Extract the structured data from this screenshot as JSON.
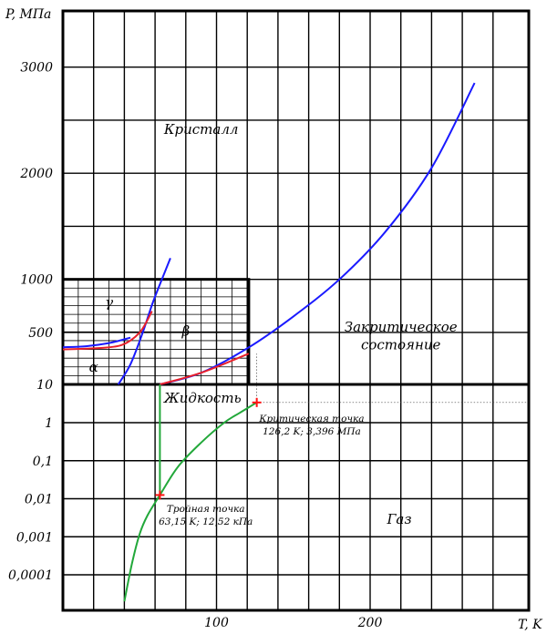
{
  "chart_data": {
    "type": "line",
    "title": "",
    "xlabel": "T, K",
    "ylabel": "P, МПа",
    "x_ticks": [
      {
        "value": 100,
        "label": "100"
      },
      {
        "value": 200,
        "label": "200"
      }
    ],
    "y_ticks": [
      "0,0001",
      "0,001",
      "0,01",
      "0,1",
      "1",
      "10",
      "500",
      "1000",
      "2000",
      "3000"
    ],
    "y_axis_note": "piecewise scale: logarithmic from 0,0001 to 10 MPa, linear from 10 to 3000 MPa",
    "xlim": [
      0,
      245
    ],
    "grid": true,
    "regions": [
      {
        "key": "crystal",
        "label": "Кристалл"
      },
      {
        "key": "supercritical_line1",
        "label": "Закритическое"
      },
      {
        "key": "supercritical_line2",
        "label": "состояние"
      },
      {
        "key": "liquid",
        "label": "Жидкость"
      },
      {
        "key": "gas",
        "label": "Газ"
      },
      {
        "key": "alpha",
        "label": "α"
      },
      {
        "key": "beta",
        "label": "β"
      },
      {
        "key": "gamma",
        "label": "γ"
      }
    ],
    "points": [
      {
        "name": "Критическая точка",
        "line1": "Критическая точка",
        "line2": "126,2 K; 3,396 МПа",
        "T": 126.2,
        "P": 3.396
      },
      {
        "name": "Тройная точка",
        "line1": "Тройная точка",
        "line2": "63,15 K; 12,52 кПа",
        "T": 63.15,
        "P": 0.01252
      }
    ],
    "series": [
      {
        "color": "#1a1aff",
        "points": [
          [
            63.15,
            10
          ],
          [
            90,
            120
          ],
          [
            120,
            350
          ],
          [
            150,
            650
          ],
          [
            180,
            1000
          ],
          [
            210,
            1450
          ],
          [
            240,
            2050
          ],
          [
            268,
            2850
          ]
        ]
      },
      {
        "color": "#1a1aff",
        "points": [
          [
            36,
            10
          ],
          [
            44,
            200
          ],
          [
            52,
            500
          ],
          [
            59,
            800
          ],
          [
            70,
            1200
          ]
        ]
      },
      {
        "color": "#1a1aff",
        "points": [
          [
            0,
            360
          ],
          [
            15,
            370
          ],
          [
            30,
            400
          ],
          [
            44,
            450
          ]
        ]
      },
      {
        "color": "#e8202a",
        "points": [
          [
            0,
            340
          ],
          [
            20,
            350
          ],
          [
            38,
            380
          ],
          [
            50,
            500
          ],
          [
            58,
            700
          ]
        ]
      },
      {
        "color": "#e8202a",
        "points": [
          [
            63.15,
            10
          ],
          [
            90,
            120
          ],
          [
            121,
            300
          ]
        ]
      },
      {
        "color": "#22a83a",
        "points": [
          [
            40,
            2e-05
          ],
          [
            45,
            0.0002
          ],
          [
            50,
            0.0012
          ],
          [
            55,
            0.0036
          ],
          [
            63.15,
            0.01252
          ],
          [
            75,
            0.07
          ],
          [
            90,
            0.3
          ],
          [
            105,
            1.0
          ],
          [
            115,
            1.8
          ],
          [
            126.2,
            3.396
          ]
        ]
      },
      {
        "color": "#22a83a",
        "points": [
          [
            63.15,
            0.01252
          ],
          [
            63.15,
            10
          ]
        ]
      }
    ]
  }
}
